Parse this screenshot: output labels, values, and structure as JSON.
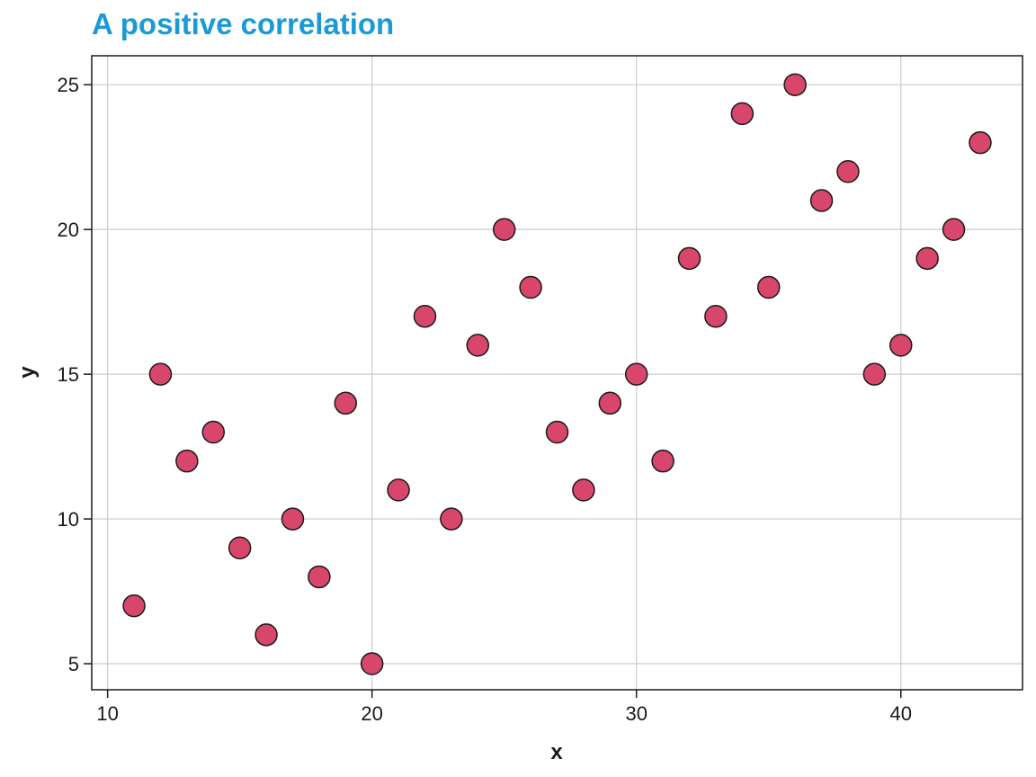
{
  "chart_data": {
    "type": "scatter",
    "title": "A positive correlation",
    "xlabel": "x",
    "ylabel": "y",
    "xlim": [
      9.4,
      44.6
    ],
    "ylim": [
      4.1,
      26
    ],
    "xticks": [
      10,
      20,
      30,
      40
    ],
    "yticks": [
      5,
      10,
      15,
      20,
      25
    ],
    "grid": true,
    "legend": "none",
    "colors": {
      "title": "#1a9ad6",
      "point_fill": "#d8466b",
      "point_stroke": "#1a1a1a",
      "grid": "#cccccc"
    },
    "x": [
      11,
      12,
      13,
      14,
      15,
      16,
      17,
      18,
      19,
      20,
      21,
      22,
      23,
      24,
      25,
      26,
      27,
      28,
      29,
      30,
      31,
      32,
      33,
      34,
      35,
      36,
      37,
      38,
      39,
      40,
      41,
      42,
      43
    ],
    "y": [
      7,
      15,
      12,
      13,
      9,
      6,
      10,
      8,
      14,
      5,
      11,
      17,
      10,
      16,
      20,
      18,
      13,
      11,
      14,
      15,
      12,
      19,
      17,
      24,
      18,
      25,
      21,
      22,
      15,
      16,
      19,
      20,
      23
    ]
  }
}
